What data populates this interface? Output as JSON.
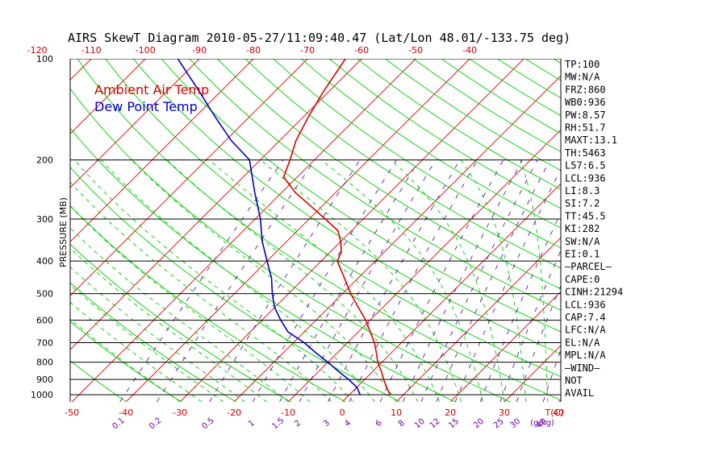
{
  "chart_data": {
    "type": "line",
    "title": "AIRS SkewT Diagram 2010-05-27/11:09:40.47 (Lat/Lon 48.01/-133.75 deg)",
    "ylabel": "PRESSURE (MB)",
    "xlabel": "T(C)",
    "mixing_label": "(g/kg)",
    "y_scale": "log",
    "ylim": [
      1000,
      100
    ],
    "xlim_bottom": [
      -50,
      45
    ],
    "pressure_ticks": [
      100,
      200,
      300,
      400,
      500,
      600,
      700,
      800,
      900,
      1000
    ],
    "top_temp_ticks": [
      -120,
      -110,
      -100,
      -90,
      -80,
      -70,
      -60,
      -50,
      -40
    ],
    "bottom_temp_ticks": [
      -50,
      -40,
      -30,
      -20,
      -10,
      0,
      10,
      20,
      30,
      40
    ],
    "mixing_ratio_ticks": [
      "0.1",
      "0.2",
      "0.5",
      "1",
      "1.5",
      "2",
      "3",
      "4",
      "6",
      "8",
      "10",
      "12",
      "15",
      "20",
      "25",
      "30",
      "40"
    ],
    "legend": {
      "placement": "top-left",
      "entries": [
        "Ambient Air Temp",
        "Dew Point Temp"
      ]
    },
    "series": [
      {
        "name": "Ambient Air Temp",
        "color": "#dd0000",
        "points": [
          [
            1000,
            7.5
          ],
          [
            950,
            5.5
          ],
          [
            900,
            3.5
          ],
          [
            850,
            1.5
          ],
          [
            800,
            -0.8
          ],
          [
            750,
            -2.8
          ],
          [
            700,
            -5.0
          ],
          [
            650,
            -7.8
          ],
          [
            600,
            -10.8
          ],
          [
            550,
            -14.5
          ],
          [
            500,
            -18.5
          ],
          [
            450,
            -22.5
          ],
          [
            400,
            -27.0
          ],
          [
            375,
            -28.0
          ],
          [
            350,
            -30.0
          ],
          [
            325,
            -32.5
          ],
          [
            300,
            -37.0
          ],
          [
            275,
            -42.0
          ],
          [
            250,
            -47.5
          ],
          [
            225,
            -52.5
          ],
          [
            200,
            -54.5
          ],
          [
            175,
            -57.0
          ],
          [
            150,
            -59.0
          ],
          [
            125,
            -61.0
          ],
          [
            100,
            -63.0
          ]
        ]
      },
      {
        "name": "Dew Point Temp",
        "color": "#0000bb",
        "points": [
          [
            1000,
            2.0
          ],
          [
            950,
            0.0
          ],
          [
            900,
            -3.0
          ],
          [
            850,
            -6.5
          ],
          [
            800,
            -10.0
          ],
          [
            750,
            -14.0
          ],
          [
            700,
            -18.0
          ],
          [
            650,
            -23.0
          ],
          [
            600,
            -26.5
          ],
          [
            550,
            -30.0
          ],
          [
            500,
            -33.0
          ],
          [
            450,
            -36.0
          ],
          [
            400,
            -40.0
          ],
          [
            350,
            -44.5
          ],
          [
            300,
            -49.0
          ],
          [
            250,
            -55.0
          ],
          [
            200,
            -62.0
          ],
          [
            175,
            -69.0
          ],
          [
            150,
            -76.0
          ],
          [
            125,
            -84.0
          ],
          [
            100,
            -94.0
          ]
        ]
      }
    ]
  },
  "stats": [
    "TP:100",
    "MW:N/A",
    "FRZ:860",
    "WB0:936",
    "PW:8.57",
    "RH:51.7",
    "MAXT:13.1",
    "TH:5463",
    "L57:6.5",
    "LCL:936",
    "LI:8.3",
    "SI:7.2",
    "TT:45.5",
    "KI:282",
    "SW:N/A",
    "EI:0.1",
    "—PARCEL—",
    "CAPE:0",
    "CINH:21294",
    "LCL:936",
    "CAP:7.4",
    "LFC:N/A",
    "EL:N/A",
    "MPL:N/A",
    "—WIND—",
    "NOT",
    "AVAIL"
  ],
  "colors": {
    "isotherm": "#dd0000",
    "dry_adiabat": "#00cc00",
    "moist_adiabat": "#00cc00",
    "mixing_ratio": "#4a0090",
    "isobar": "#000000"
  }
}
